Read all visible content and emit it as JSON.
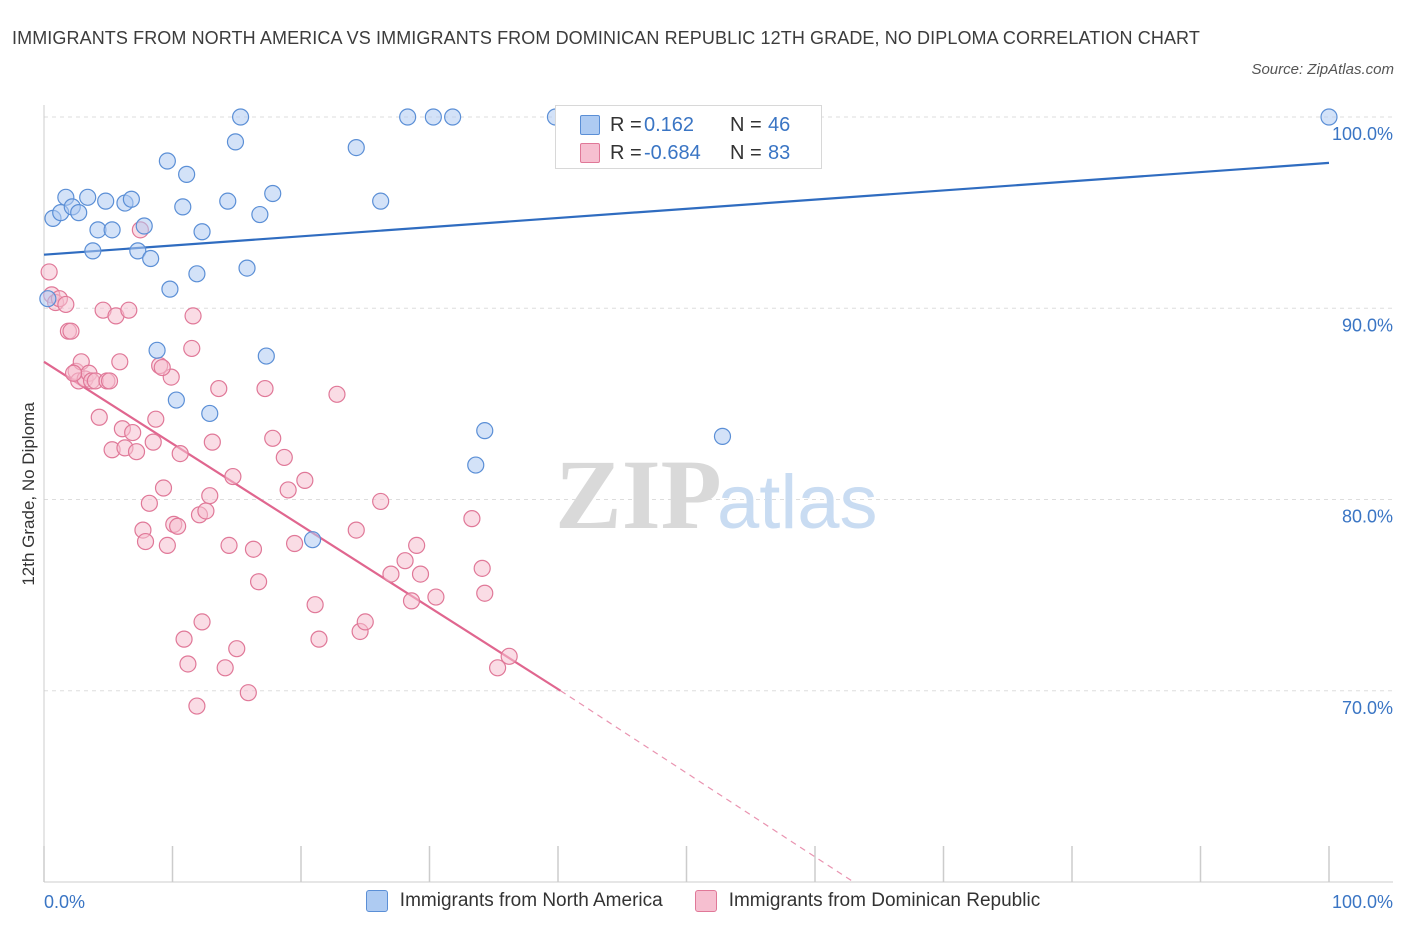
{
  "header": {
    "title": "IMMIGRANTS FROM NORTH AMERICA VS IMMIGRANTS FROM DOMINICAN REPUBLIC 12TH GRADE, NO DIPLOMA CORRELATION CHART",
    "source": "Source: ZipAtlas.com"
  },
  "watermark": {
    "zip": "ZIP",
    "atlas": "atlas"
  },
  "legend": {
    "rows": [
      {
        "r_label": "R =",
        "r_value": "0.162",
        "n_label": "N =",
        "n_value": "46"
      },
      {
        "r_label": "R =",
        "r_value": "-0.684",
        "n_label": "N =",
        "n_value": "83"
      }
    ]
  },
  "colors": {
    "blue_fill": "#aecbf2",
    "blue_stroke": "#5b8fd6",
    "blue_line": "#2f6cc0",
    "pink_fill": "#f6bfd0",
    "pink_stroke": "#e07898",
    "pink_line": "#e0668f",
    "axis_text": "#3a75c4",
    "grid": "#dddddd"
  },
  "chart_data": {
    "type": "scatter",
    "title": "IMMIGRANTS FROM NORTH AMERICA VS IMMIGRANTS FROM DOMINICAN REPUBLIC 12TH GRADE, NO DIPLOMA CORRELATION CHART",
    "xlabel": "",
    "ylabel": "12th Grade, No Diploma",
    "xlim": [
      0,
      100
    ],
    "ylim": [
      60,
      100
    ],
    "x_tick_labels": [
      "0.0%",
      "100.0%"
    ],
    "y_ticks": [
      100,
      90,
      80,
      70
    ],
    "y_tick_labels": [
      "100.0%",
      "90.0%",
      "80.0%",
      "70.0%"
    ],
    "grid": true,
    "legend_position": "bottom",
    "series": [
      {
        "name": "Immigrants from North America",
        "R": 0.162,
        "N": 46,
        "trend": {
          "x1": 0,
          "y1": 92.8,
          "x2": 100,
          "y2": 97.6
        },
        "points": [
          [
            0.3,
            90.5
          ],
          [
            0.7,
            94.7
          ],
          [
            1.3,
            95.0
          ],
          [
            1.7,
            95.8
          ],
          [
            2.2,
            95.3
          ],
          [
            2.7,
            95.0
          ],
          [
            3.4,
            95.8
          ],
          [
            3.8,
            93.0
          ],
          [
            4.2,
            94.1
          ],
          [
            4.8,
            95.6
          ],
          [
            5.3,
            94.1
          ],
          [
            6.3,
            95.5
          ],
          [
            6.8,
            95.7
          ],
          [
            7.3,
            93.0
          ],
          [
            7.8,
            94.3
          ],
          [
            8.3,
            92.6
          ],
          [
            8.8,
            87.8
          ],
          [
            9.6,
            97.7
          ],
          [
            9.8,
            91.0
          ],
          [
            10.3,
            85.2
          ],
          [
            10.8,
            95.3
          ],
          [
            11.1,
            97.0
          ],
          [
            11.9,
            91.8
          ],
          [
            12.3,
            94.0
          ],
          [
            12.9,
            84.5
          ],
          [
            14.3,
            95.6
          ],
          [
            14.9,
            98.7
          ],
          [
            15.3,
            100.0
          ],
          [
            15.8,
            92.1
          ],
          [
            16.8,
            94.9
          ],
          [
            17.3,
            87.5
          ],
          [
            17.8,
            96.0
          ],
          [
            20.9,
            77.9
          ],
          [
            24.3,
            98.4
          ],
          [
            26.2,
            95.6
          ],
          [
            28.3,
            100.0
          ],
          [
            30.3,
            100.0
          ],
          [
            31.8,
            100.0
          ],
          [
            33.6,
            81.8
          ],
          [
            34.3,
            83.6
          ],
          [
            39.8,
            100.0
          ],
          [
            41.3,
            100.0
          ],
          [
            43.3,
            100.0
          ],
          [
            47.8,
            100.0
          ],
          [
            52.8,
            83.3
          ],
          [
            100.0,
            100.0
          ]
        ]
      },
      {
        "name": "Immigrants from Dominican Republic",
        "R": -0.684,
        "N": 83,
        "trend": {
          "x1": 0,
          "y1": 87.2,
          "x2": 40.2,
          "y2": 70.0
        },
        "trend_dashed": {
          "x1": 40.2,
          "y1": 70.0,
          "x2": 63,
          "y2": 60.0
        },
        "points": [
          [
            0.4,
            91.9
          ],
          [
            0.6,
            90.7
          ],
          [
            0.9,
            90.3
          ],
          [
            1.2,
            90.5
          ],
          [
            1.7,
            90.2
          ],
          [
            1.9,
            88.8
          ],
          [
            2.1,
            88.8
          ],
          [
            2.5,
            86.7
          ],
          [
            2.7,
            86.2
          ],
          [
            2.9,
            87.2
          ],
          [
            3.2,
            86.3
          ],
          [
            3.5,
            86.6
          ],
          [
            3.7,
            86.2
          ],
          [
            4.0,
            86.2
          ],
          [
            4.3,
            84.3
          ],
          [
            4.6,
            89.9
          ],
          [
            4.9,
            86.2
          ],
          [
            5.1,
            86.2
          ],
          [
            5.3,
            82.6
          ],
          [
            5.6,
            89.6
          ],
          [
            5.9,
            87.2
          ],
          [
            6.1,
            83.7
          ],
          [
            6.3,
            82.7
          ],
          [
            6.6,
            89.9
          ],
          [
            6.9,
            83.5
          ],
          [
            7.2,
            82.5
          ],
          [
            7.5,
            94.1
          ],
          [
            7.7,
            78.4
          ],
          [
            7.9,
            77.8
          ],
          [
            8.2,
            79.8
          ],
          [
            8.5,
            83.0
          ],
          [
            8.7,
            84.2
          ],
          [
            9.0,
            87.0
          ],
          [
            9.3,
            80.6
          ],
          [
            9.6,
            77.6
          ],
          [
            9.9,
            86.4
          ],
          [
            10.1,
            78.7
          ],
          [
            10.4,
            78.6
          ],
          [
            10.6,
            82.4
          ],
          [
            10.9,
            72.7
          ],
          [
            11.2,
            71.4
          ],
          [
            11.5,
            87.9
          ],
          [
            11.6,
            89.6
          ],
          [
            11.9,
            69.2
          ],
          [
            12.1,
            79.2
          ],
          [
            12.3,
            73.6
          ],
          [
            12.6,
            79.4
          ],
          [
            12.9,
            80.2
          ],
          [
            13.1,
            83.0
          ],
          [
            13.6,
            85.8
          ],
          [
            14.1,
            71.2
          ],
          [
            14.4,
            77.6
          ],
          [
            14.7,
            81.2
          ],
          [
            15.0,
            72.2
          ],
          [
            15.9,
            69.9
          ],
          [
            16.3,
            77.4
          ],
          [
            16.7,
            75.7
          ],
          [
            17.2,
            85.8
          ],
          [
            17.8,
            83.2
          ],
          [
            18.7,
            82.2
          ],
          [
            19.0,
            80.5
          ],
          [
            19.5,
            77.7
          ],
          [
            20.3,
            81.0
          ],
          [
            21.1,
            74.5
          ],
          [
            21.4,
            72.7
          ],
          [
            22.8,
            85.5
          ],
          [
            24.3,
            78.4
          ],
          [
            24.6,
            73.1
          ],
          [
            25.0,
            73.6
          ],
          [
            26.2,
            79.9
          ],
          [
            27.0,
            76.1
          ],
          [
            28.1,
            76.8
          ],
          [
            28.6,
            74.7
          ],
          [
            29.0,
            77.6
          ],
          [
            29.3,
            76.1
          ],
          [
            30.5,
            74.9
          ],
          [
            33.3,
            79.0
          ],
          [
            34.1,
            76.4
          ],
          [
            34.3,
            75.1
          ],
          [
            35.3,
            71.2
          ],
          [
            36.2,
            71.8
          ],
          [
            2.3,
            86.6
          ],
          [
            9.2,
            86.9
          ]
        ]
      }
    ]
  }
}
